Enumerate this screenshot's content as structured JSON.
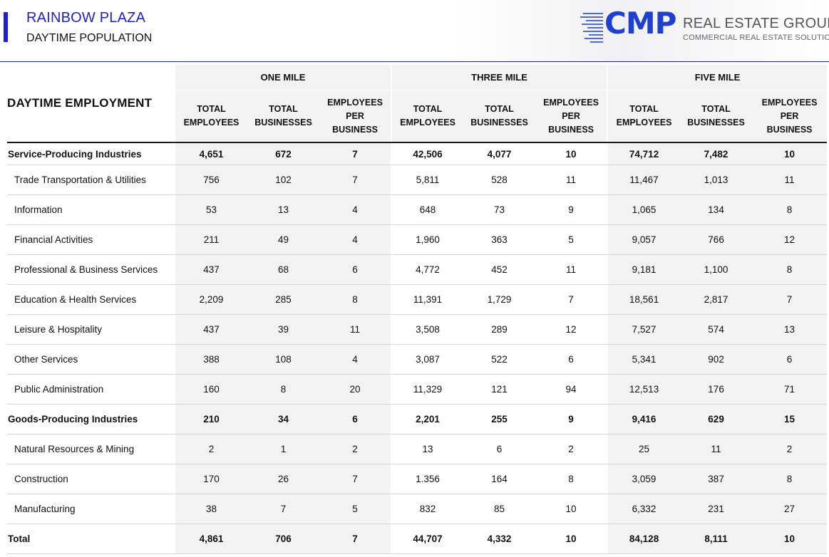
{
  "header": {
    "title": "RAINBOW PLAZA",
    "subtitle": "DAYTIME POPULATION",
    "accent_color": "#1d1fd6"
  },
  "logo": {
    "mark": "CMP",
    "name": "REAL ESTATE GROUP",
    "tagline": "COMMERCIAL REAL ESTATE SOLUTIONS",
    "color": "#1f3fd0"
  },
  "table": {
    "corner_label": "DAYTIME EMPLOYMENT",
    "groups": [
      "ONE MILE",
      "THREE MILE",
      "FIVE MILE"
    ],
    "subcols": {
      "total_employees": [
        "TOTAL",
        "EMPLOYEES"
      ],
      "total_businesses": [
        "TOTAL",
        "BUSINESSES"
      ],
      "employees_per_business": [
        "EMPLOYEES",
        "PER",
        "BUSINESS"
      ]
    },
    "rows": [
      {
        "label": "Service-Producing Industries",
        "bold": true,
        "values": [
          "4,651",
          "672",
          "7",
          "42,506",
          "4,077",
          "10",
          "74,712",
          "7,482",
          "10"
        ]
      },
      {
        "label": "Trade Transportation & Utilities",
        "bold": false,
        "values": [
          "756",
          "102",
          "7",
          "5,811",
          "528",
          "11",
          "11,467",
          "1,013",
          "11"
        ]
      },
      {
        "label": "Information",
        "bold": false,
        "values": [
          "53",
          "13",
          "4",
          "648",
          "73",
          "9",
          "1,065",
          "134",
          "8"
        ]
      },
      {
        "label": "Financial Activities",
        "bold": false,
        "values": [
          "211",
          "49",
          "4",
          "1,960",
          "363",
          "5",
          "9,057",
          "766",
          "12"
        ]
      },
      {
        "label": "Professional & Business Services",
        "bold": false,
        "values": [
          "437",
          "68",
          "6",
          "4,772",
          "452",
          "11",
          "9,181",
          "1,100",
          "8"
        ]
      },
      {
        "label": "Education & Health Services",
        "bold": false,
        "values": [
          "2,209",
          "285",
          "8",
          "11,391",
          "1,729",
          "7",
          "18,561",
          "2,817",
          "7"
        ]
      },
      {
        "label": "Leisure & Hospitality",
        "bold": false,
        "values": [
          "437",
          "39",
          "11",
          "3,508",
          "289",
          "12",
          "7,527",
          "574",
          "13"
        ]
      },
      {
        "label": "Other Services",
        "bold": false,
        "values": [
          "388",
          "108",
          "4",
          "3,087",
          "522",
          "6",
          "5,341",
          "902",
          "6"
        ]
      },
      {
        "label": "Public Administration",
        "bold": false,
        "values": [
          "160",
          "8",
          "20",
          "11,329",
          "121",
          "94",
          "12,513",
          "176",
          "71"
        ]
      },
      {
        "label": "Goods-Producing Industries",
        "bold": true,
        "values": [
          "210",
          "34",
          "6",
          "2,201",
          "255",
          "9",
          "9,416",
          "629",
          "15"
        ]
      },
      {
        "label": "Natural Resources & Mining",
        "bold": false,
        "values": [
          "2",
          "1",
          "2",
          "13",
          "6",
          "2",
          "25",
          "11",
          "2"
        ]
      },
      {
        "label": "Construction",
        "bold": false,
        "values": [
          "170",
          "26",
          "7",
          "1.356",
          "164",
          "8",
          "3,059",
          "387",
          "8"
        ]
      },
      {
        "label": "Manufacturing",
        "bold": false,
        "values": [
          "38",
          "7",
          "5",
          "832",
          "85",
          "10",
          "6,332",
          "231",
          "27"
        ]
      },
      {
        "label": "Total",
        "bold": true,
        "values": [
          "4,861",
          "706",
          "7",
          "44,707",
          "4,332",
          "10",
          "84,128",
          "8,111",
          "10"
        ]
      }
    ]
  }
}
